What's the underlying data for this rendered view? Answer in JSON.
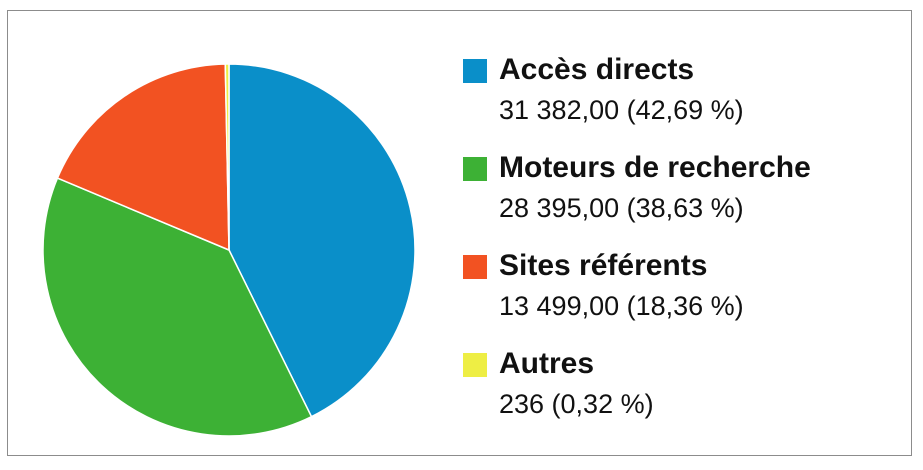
{
  "chart_data": {
    "type": "pie",
    "slices": [
      {
        "name": "Accès directs",
        "value": 31382.0,
        "percent": 42.69,
        "value_text": "31 382,00 (42,69 %)",
        "color": "#0a8fc9"
      },
      {
        "name": "Moteurs de recherche",
        "value": 28395.0,
        "percent": 38.63,
        "value_text": "28 395,00 (38,63 %)",
        "color": "#3db135"
      },
      {
        "name": "Sites référents",
        "value": 13499.0,
        "percent": 18.36,
        "value_text": "13 499,00 (18,36 %)",
        "color": "#f25222"
      },
      {
        "name": "Autres",
        "value": 236,
        "percent": 0.32,
        "value_text": "236 (0,32 %)",
        "color": "#eeee44"
      }
    ],
    "start_angle_deg": 90,
    "direction": "clockwise",
    "legend_position": "right"
  }
}
